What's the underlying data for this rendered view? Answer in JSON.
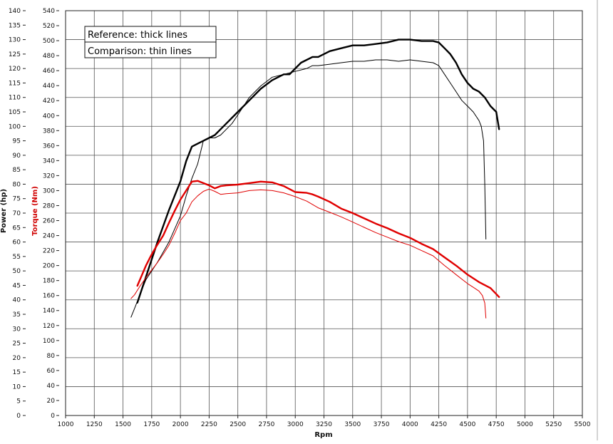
{
  "chart_data": {
    "type": "line",
    "xlabel": "Rpm",
    "ylabel_left": "Power (hp)",
    "ylabel_right": "Torque (Nm)",
    "xlim": [
      1000,
      5500
    ],
    "power_lim": [
      0,
      140
    ],
    "torque_lim": [
      0,
      540
    ],
    "x_ticks": [
      1000,
      1250,
      1500,
      1750,
      2000,
      2250,
      2500,
      2750,
      3000,
      3250,
      3500,
      3750,
      4000,
      4250,
      4500,
      4750,
      5000,
      5250,
      5500
    ],
    "power_ticks": [
      0,
      5,
      10,
      15,
      20,
      25,
      30,
      35,
      40,
      45,
      50,
      55,
      60,
      65,
      70,
      75,
      80,
      85,
      90,
      95,
      100,
      105,
      110,
      115,
      120,
      125,
      130,
      135,
      140
    ],
    "torque_ticks": [
      0,
      20,
      40,
      60,
      80,
      100,
      120,
      140,
      160,
      180,
      200,
      220,
      240,
      260,
      280,
      300,
      320,
      340,
      360,
      380,
      400,
      420,
      440,
      460,
      480,
      500,
      520,
      540
    ],
    "grid": true,
    "legend": [
      "Reference: thick lines",
      "Comparison: thin lines"
    ],
    "legend_position": "top-left",
    "colors": {
      "power": "#000000",
      "torque": "#e00000",
      "grid": "#555555"
    },
    "series": [
      {
        "quantity": "power",
        "style": "thick",
        "x": [
          1625,
          1700,
          1800,
          1900,
          2000,
          2050,
          2100,
          2150,
          2200,
          2250,
          2300,
          2350,
          2400,
          2450,
          2500,
          2600,
          2700,
          2800,
          2900,
          2950,
          3000,
          3050,
          3100,
          3150,
          3200,
          3300,
          3400,
          3500,
          3600,
          3700,
          3800,
          3900,
          4000,
          4100,
          4200,
          4250,
          4300,
          4350,
          4400,
          4450,
          4500,
          4550,
          4600,
          4650,
          4700,
          4750,
          4775
        ],
        "values": [
          39,
          48,
          60,
          71,
          81,
          88,
          93,
          94,
          95,
          96,
          97,
          99,
          101,
          103,
          105,
          109,
          113,
          116,
          118,
          118,
          120,
          122,
          123,
          124,
          124,
          126,
          127,
          128,
          128,
          128.5,
          129,
          130,
          130,
          129.5,
          129.5,
          129,
          127,
          125,
          122,
          118,
          115,
          113,
          112,
          110,
          107,
          105,
          99
        ]
      },
      {
        "quantity": "power",
        "style": "thin",
        "x": [
          1570,
          1600,
          1650,
          1700,
          1800,
          1900,
          2000,
          2050,
          2100,
          2150,
          2200,
          2250,
          2300,
          2350,
          2400,
          2450,
          2500,
          2600,
          2700,
          2800,
          2900,
          3000,
          3100,
          3150,
          3200,
          3300,
          3400,
          3500,
          3600,
          3700,
          3800,
          3900,
          4000,
          4100,
          4200,
          4250,
          4300,
          4350,
          4400,
          4450,
          4500,
          4550,
          4600,
          4620,
          4640,
          4650,
          4660
        ],
        "values": [
          34,
          37,
          42,
          47,
          53,
          60,
          69,
          76,
          82,
          87,
          95,
          96,
          96,
          97,
          99,
          101,
          104,
          110,
          114,
          117,
          118,
          119,
          120,
          121,
          121,
          121.5,
          122,
          122.5,
          122.5,
          123,
          123,
          122.5,
          123,
          122.5,
          122,
          121,
          118,
          115,
          112,
          109,
          107,
          105,
          102,
          100,
          95,
          80,
          61
        ]
      },
      {
        "quantity": "torque",
        "style": "thick",
        "x": [
          1625,
          1700,
          1750,
          1800,
          1850,
          1900,
          1950,
          2000,
          2050,
          2100,
          2150,
          2200,
          2250,
          2300,
          2350,
          2400,
          2500,
          2600,
          2700,
          2800,
          2900,
          2950,
          3000,
          3100,
          3150,
          3200,
          3300,
          3400,
          3500,
          3600,
          3700,
          3800,
          3900,
          4000,
          4100,
          4200,
          4300,
          4400,
          4500,
          4600,
          4700,
          4750,
          4775
        ],
        "values": [
          173,
          200,
          215,
          228,
          240,
          257,
          273,
          288,
          300,
          312,
          313,
          310,
          307,
          303,
          306,
          307,
          308,
          310,
          312,
          311,
          306,
          302,
          298,
          297,
          295,
          292,
          285,
          276,
          270,
          263,
          256,
          250,
          243,
          237,
          229,
          222,
          211,
          200,
          188,
          178,
          170,
          162,
          158
        ]
      },
      {
        "quantity": "torque",
        "style": "thin",
        "x": [
          1570,
          1600,
          1650,
          1700,
          1750,
          1800,
          1850,
          1900,
          1950,
          2000,
          2050,
          2100,
          2150,
          2200,
          2250,
          2300,
          2350,
          2400,
          2500,
          2600,
          2700,
          2800,
          2900,
          3000,
          3100,
          3200,
          3300,
          3400,
          3500,
          3600,
          3700,
          3800,
          3900,
          4000,
          4100,
          4200,
          4300,
          4400,
          4500,
          4550,
          4600,
          4630,
          4650,
          4660
        ],
        "values": [
          156,
          161,
          173,
          184,
          194,
          204,
          215,
          227,
          243,
          260,
          270,
          285,
          293,
          299,
          302,
          299,
          295,
          296,
          297,
          300,
          301,
          300,
          297,
          292,
          286,
          277,
          271,
          265,
          258,
          251,
          244,
          238,
          232,
          227,
          220,
          213,
          200,
          188,
          176,
          171,
          166,
          160,
          150,
          130
        ]
      }
    ]
  }
}
